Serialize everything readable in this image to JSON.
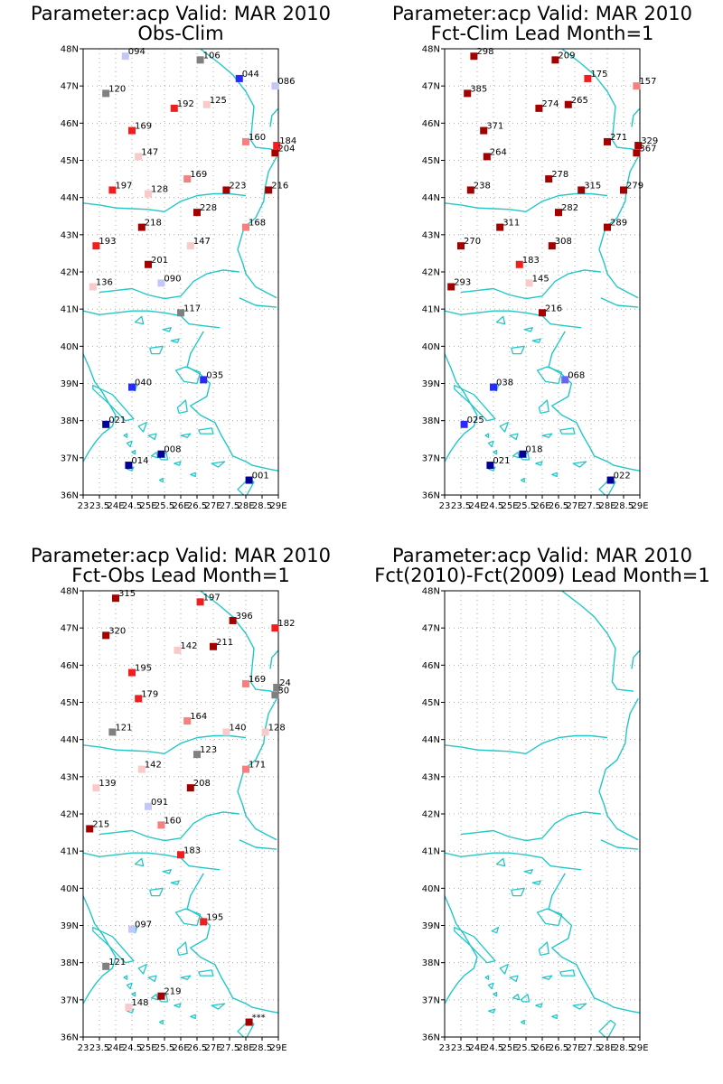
{
  "colors": {
    "coast": "#22c7c7",
    "grid": "#9a9a9a",
    "frame": "#000000",
    "dark_red": "#a40000",
    "red": "#f01e1e",
    "light_red": "#f58080",
    "pink": "#f9caca",
    "gray": "#808080",
    "light_blue": "#c4c8f6",
    "blue": "#2a2aff",
    "mid_blue": "#6464ff",
    "navy": "#000096"
  },
  "map": {
    "lon_range": [
      23,
      29
    ],
    "lat_range": [
      36,
      48
    ],
    "y_ticks": [
      "36N",
      "37N",
      "38N",
      "39N",
      "40N",
      "41N",
      "42N",
      "43N",
      "44N",
      "45N",
      "46N",
      "47N",
      "48N"
    ],
    "x_ticks": [
      "23",
      "23.5",
      "24E",
      "24.5",
      "25E",
      "25.5",
      "26E",
      "26.5",
      "27E",
      "27.5",
      "28E",
      "28.5",
      "29E"
    ]
  },
  "panels": [
    {
      "title_line1": "Parameter:acp Valid: MAR 2010",
      "title_line2": "Obs-Clim",
      "stations": [
        {
          "lon": 24.3,
          "lat": 47.8,
          "label": "094",
          "color": "light_blue"
        },
        {
          "lon": 26.6,
          "lat": 47.7,
          "label": "106",
          "color": "gray"
        },
        {
          "lon": 27.8,
          "lat": 47.2,
          "label": "044",
          "color": "blue"
        },
        {
          "lon": 28.9,
          "lat": 47.0,
          "label": "086",
          "color": "light_blue"
        },
        {
          "lon": 23.7,
          "lat": 46.8,
          "label": "120",
          "color": "gray"
        },
        {
          "lon": 25.8,
          "lat": 46.4,
          "label": "192",
          "color": "red"
        },
        {
          "lon": 26.8,
          "lat": 46.5,
          "label": "125",
          "color": "pink"
        },
        {
          "lon": 24.5,
          "lat": 45.8,
          "label": "169",
          "color": "red"
        },
        {
          "lon": 28.0,
          "lat": 45.5,
          "label": "160",
          "color": "light_red"
        },
        {
          "lon": 28.95,
          "lat": 45.4,
          "label": "184",
          "color": "red"
        },
        {
          "lon": 28.9,
          "lat": 45.2,
          "label": "204",
          "color": "dark_red"
        },
        {
          "lon": 24.7,
          "lat": 45.1,
          "label": "147",
          "color": "pink"
        },
        {
          "lon": 26.2,
          "lat": 44.5,
          "label": "169",
          "color": "light_red"
        },
        {
          "lon": 23.9,
          "lat": 44.2,
          "label": "197",
          "color": "red"
        },
        {
          "lon": 25.0,
          "lat": 44.1,
          "label": "128",
          "color": "pink"
        },
        {
          "lon": 27.4,
          "lat": 44.2,
          "label": "223",
          "color": "dark_red"
        },
        {
          "lon": 28.7,
          "lat": 44.2,
          "label": "216",
          "color": "dark_red"
        },
        {
          "lon": 26.5,
          "lat": 43.6,
          "label": "228",
          "color": "dark_red"
        },
        {
          "lon": 28.0,
          "lat": 43.2,
          "label": "168",
          "color": "light_red"
        },
        {
          "lon": 24.8,
          "lat": 43.2,
          "label": "218",
          "color": "dark_red"
        },
        {
          "lon": 23.4,
          "lat": 42.7,
          "label": "193",
          "color": "red"
        },
        {
          "lon": 26.3,
          "lat": 42.7,
          "label": "147",
          "color": "pink"
        },
        {
          "lon": 25.0,
          "lat": 42.2,
          "label": "201",
          "color": "dark_red"
        },
        {
          "lon": 23.3,
          "lat": 41.6,
          "label": "136",
          "color": "pink"
        },
        {
          "lon": 25.4,
          "lat": 41.7,
          "label": "090",
          "color": "light_blue"
        },
        {
          "lon": 26.0,
          "lat": 40.9,
          "label": "117",
          "color": "gray"
        },
        {
          "lon": 24.5,
          "lat": 38.9,
          "label": "040",
          "color": "blue"
        },
        {
          "lon": 26.7,
          "lat": 39.1,
          "label": "035",
          "color": "blue"
        },
        {
          "lon": 23.7,
          "lat": 37.9,
          "label": "021",
          "color": "navy"
        },
        {
          "lon": 25.4,
          "lat": 37.1,
          "label": "008",
          "color": "navy"
        },
        {
          "lon": 24.4,
          "lat": 36.8,
          "label": "014",
          "color": "navy"
        },
        {
          "lon": 28.1,
          "lat": 36.4,
          "label": "001",
          "color": "navy"
        }
      ]
    },
    {
      "title_line1": "Parameter:acp Valid: MAR 2010",
      "title_line2": "Fct-Clim Lead Month=1",
      "stations": [
        {
          "lon": 23.9,
          "lat": 47.8,
          "label": "298",
          "color": "dark_red"
        },
        {
          "lon": 26.4,
          "lat": 47.7,
          "label": "209",
          "color": "dark_red"
        },
        {
          "lon": 27.4,
          "lat": 47.2,
          "label": "175",
          "color": "red"
        },
        {
          "lon": 28.9,
          "lat": 47.0,
          "label": "157",
          "color": "light_red"
        },
        {
          "lon": 23.7,
          "lat": 46.8,
          "label": "385",
          "color": "dark_red"
        },
        {
          "lon": 25.9,
          "lat": 46.4,
          "label": "274",
          "color": "dark_red"
        },
        {
          "lon": 26.8,
          "lat": 46.5,
          "label": "265",
          "color": "dark_red"
        },
        {
          "lon": 24.2,
          "lat": 45.8,
          "label": "371",
          "color": "dark_red"
        },
        {
          "lon": 28.0,
          "lat": 45.5,
          "label": "271",
          "color": "dark_red"
        },
        {
          "lon": 28.95,
          "lat": 45.4,
          "label": "329",
          "color": "dark_red"
        },
        {
          "lon": 28.9,
          "lat": 45.2,
          "label": "367",
          "color": "dark_red"
        },
        {
          "lon": 24.3,
          "lat": 45.1,
          "label": "264",
          "color": "dark_red"
        },
        {
          "lon": 26.2,
          "lat": 44.5,
          "label": "278",
          "color": "dark_red"
        },
        {
          "lon": 23.8,
          "lat": 44.2,
          "label": "238",
          "color": "dark_red"
        },
        {
          "lon": 27.2,
          "lat": 44.2,
          "label": "315",
          "color": "dark_red"
        },
        {
          "lon": 28.5,
          "lat": 44.2,
          "label": "279",
          "color": "dark_red"
        },
        {
          "lon": 26.5,
          "lat": 43.6,
          "label": "282",
          "color": "dark_red"
        },
        {
          "lon": 28.0,
          "lat": 43.2,
          "label": "289",
          "color": "dark_red"
        },
        {
          "lon": 24.7,
          "lat": 43.2,
          "label": "311",
          "color": "dark_red"
        },
        {
          "lon": 23.5,
          "lat": 42.7,
          "label": "270",
          "color": "dark_red"
        },
        {
          "lon": 26.3,
          "lat": 42.7,
          "label": "308",
          "color": "dark_red"
        },
        {
          "lon": 25.3,
          "lat": 42.2,
          "label": "183",
          "color": "red"
        },
        {
          "lon": 23.2,
          "lat": 41.6,
          "label": "293",
          "color": "dark_red"
        },
        {
          "lon": 25.6,
          "lat": 41.7,
          "label": "145",
          "color": "pink"
        },
        {
          "lon": 26.0,
          "lat": 40.9,
          "label": "216",
          "color": "dark_red"
        },
        {
          "lon": 24.5,
          "lat": 38.9,
          "label": "038",
          "color": "blue"
        },
        {
          "lon": 26.7,
          "lat": 39.1,
          "label": "068",
          "color": "mid_blue"
        },
        {
          "lon": 23.6,
          "lat": 37.9,
          "label": "025",
          "color": "blue"
        },
        {
          "lon": 25.4,
          "lat": 37.1,
          "label": "018",
          "color": "navy"
        },
        {
          "lon": 24.4,
          "lat": 36.8,
          "label": "021",
          "color": "navy"
        },
        {
          "lon": 28.1,
          "lat": 36.4,
          "label": "022",
          "color": "navy"
        }
      ]
    },
    {
      "title_line1": "Parameter:acp Valid: MAR 2010",
      "title_line2": "Fct-Obs Lead Month=1",
      "stations": [
        {
          "lon": 24.0,
          "lat": 47.8,
          "label": "315",
          "color": "dark_red"
        },
        {
          "lon": 26.6,
          "lat": 47.7,
          "label": "197",
          "color": "red"
        },
        {
          "lon": 27.6,
          "lat": 47.2,
          "label": "396",
          "color": "dark_red"
        },
        {
          "lon": 28.9,
          "lat": 47.0,
          "label": "182",
          "color": "red"
        },
        {
          "lon": 23.7,
          "lat": 46.8,
          "label": "320",
          "color": "dark_red"
        },
        {
          "lon": 25.9,
          "lat": 46.4,
          "label": "142",
          "color": "pink"
        },
        {
          "lon": 27.0,
          "lat": 46.5,
          "label": "211",
          "color": "dark_red"
        },
        {
          "lon": 24.5,
          "lat": 45.8,
          "label": "195",
          "color": "red"
        },
        {
          "lon": 28.0,
          "lat": 45.5,
          "label": "169",
          "color": "light_red"
        },
        {
          "lon": 28.95,
          "lat": 45.4,
          "label": "24",
          "color": "gray"
        },
        {
          "lon": 28.9,
          "lat": 45.2,
          "label": "30",
          "color": "gray"
        },
        {
          "lon": 24.7,
          "lat": 45.1,
          "label": "179",
          "color": "red"
        },
        {
          "lon": 26.2,
          "lat": 44.5,
          "label": "164",
          "color": "light_red"
        },
        {
          "lon": 23.9,
          "lat": 44.2,
          "label": "121",
          "color": "gray"
        },
        {
          "lon": 27.4,
          "lat": 44.2,
          "label": "140",
          "color": "pink"
        },
        {
          "lon": 28.6,
          "lat": 44.2,
          "label": "128",
          "color": "pink"
        },
        {
          "lon": 26.5,
          "lat": 43.6,
          "label": "123",
          "color": "gray"
        },
        {
          "lon": 28.0,
          "lat": 43.2,
          "label": "171",
          "color": "light_red"
        },
        {
          "lon": 24.8,
          "lat": 43.2,
          "label": "142",
          "color": "pink"
        },
        {
          "lon": 23.4,
          "lat": 42.7,
          "label": "139",
          "color": "pink"
        },
        {
          "lon": 26.3,
          "lat": 42.7,
          "label": "208",
          "color": "dark_red"
        },
        {
          "lon": 25.0,
          "lat": 42.2,
          "label": "091",
          "color": "light_blue"
        },
        {
          "lon": 23.2,
          "lat": 41.6,
          "label": "215",
          "color": "dark_red"
        },
        {
          "lon": 25.4,
          "lat": 41.7,
          "label": "160",
          "color": "light_red"
        },
        {
          "lon": 26.0,
          "lat": 40.9,
          "label": "183",
          "color": "red"
        },
        {
          "lon": 24.5,
          "lat": 38.9,
          "label": "097",
          "color": "light_blue"
        },
        {
          "lon": 26.7,
          "lat": 39.1,
          "label": "195",
          "color": "red"
        },
        {
          "lon": 23.7,
          "lat": 37.9,
          "label": "121",
          "color": "gray"
        },
        {
          "lon": 25.4,
          "lat": 37.1,
          "label": "219",
          "color": "dark_red"
        },
        {
          "lon": 24.4,
          "lat": 36.8,
          "label": "148",
          "color": "pink"
        },
        {
          "lon": 28.1,
          "lat": 36.4,
          "label": "***",
          "color": "dark_red"
        }
      ]
    },
    {
      "title_line1": "Parameter:acp Valid: MAR 2010",
      "title_line2": "Fct(2010)-Fct(2009) Lead Month=1",
      "stations": []
    }
  ]
}
